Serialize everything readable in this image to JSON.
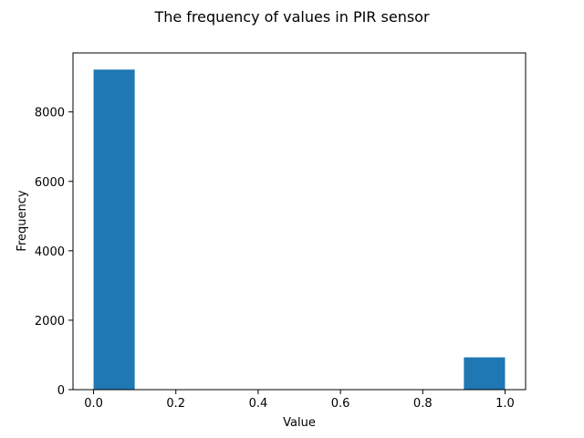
{
  "chart_data": {
    "type": "bar",
    "title": "The frequency of values in PIR sensor",
    "xlabel": "Value",
    "ylabel": "Frequency",
    "bins": [
      {
        "x0": 0.0,
        "x1": 0.1,
        "value": 9220
      },
      {
        "x0": 0.1,
        "x1": 0.2,
        "value": 0
      },
      {
        "x0": 0.2,
        "x1": 0.3,
        "value": 0
      },
      {
        "x0": 0.3,
        "x1": 0.4,
        "value": 0
      },
      {
        "x0": 0.4,
        "x1": 0.5,
        "value": 0
      },
      {
        "x0": 0.5,
        "x1": 0.6,
        "value": 0
      },
      {
        "x0": 0.6,
        "x1": 0.7,
        "value": 0
      },
      {
        "x0": 0.7,
        "x1": 0.8,
        "value": 0
      },
      {
        "x0": 0.8,
        "x1": 0.9,
        "value": 0
      },
      {
        "x0": 0.9,
        "x1": 1.0,
        "value": 930
      }
    ],
    "xlim": [
      -0.05,
      1.05
    ],
    "ylim": [
      0,
      9700
    ],
    "xticks": [
      0.0,
      0.2,
      0.4,
      0.6,
      0.8,
      1.0
    ],
    "xtick_labels": [
      "0.0",
      "0.2",
      "0.4",
      "0.6",
      "0.8",
      "1.0"
    ],
    "yticks": [
      0,
      2000,
      4000,
      6000,
      8000
    ],
    "ytick_labels": [
      "0",
      "2000",
      "4000",
      "6000",
      "8000"
    ],
    "bar_color": "#1f77b4",
    "grid": false,
    "legend": false
  }
}
